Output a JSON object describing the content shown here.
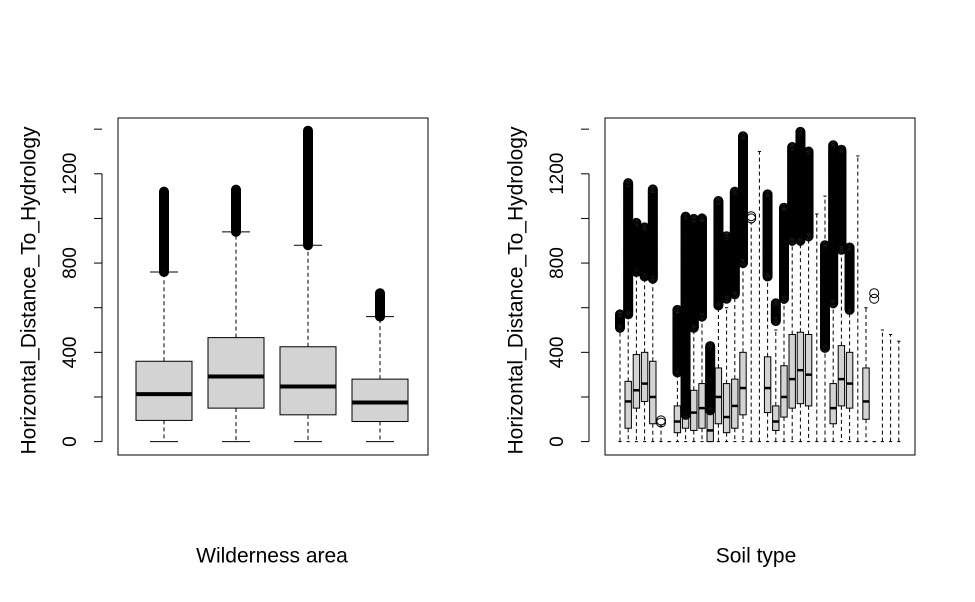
{
  "chart_data": [
    {
      "type": "box",
      "xlabel": "Wilderness area",
      "ylabel": "Horizontal_Distance_To_Hydrology",
      "ylim": [
        -60,
        1450
      ],
      "yticks": [
        0,
        400,
        800,
        1200
      ],
      "series": [
        {
          "q1": 95,
          "median": 213,
          "q3": 360,
          "whisker_low": 0,
          "whisker_high": 760,
          "outlier_range": [
            760,
            1120
          ]
        },
        {
          "q1": 150,
          "median": 292,
          "q3": 466,
          "whisker_low": 0,
          "whisker_high": 940,
          "outlier_range": [
            940,
            1130
          ]
        },
        {
          "q1": 120,
          "median": 247,
          "q3": 425,
          "whisker_low": 0,
          "whisker_high": 880,
          "outlier_range": [
            880,
            1395
          ]
        },
        {
          "q1": 90,
          "median": 175,
          "q3": 280,
          "whisker_low": 0,
          "whisker_high": 560,
          "outlier_range": [
            560,
            665
          ]
        }
      ]
    },
    {
      "type": "box",
      "xlabel": "Soil type",
      "ylabel": "Horizontal_Distance_To_Hydrology",
      "ylim": [
        -60,
        1450
      ],
      "yticks": [
        0,
        400,
        800,
        1200
      ],
      "series": [
        {
          "q1": 0,
          "median": 0,
          "q3": 0,
          "whisker_low": 0,
          "whisker_high": 500,
          "outlier_range": [
            510,
            570
          ]
        },
        {
          "q1": 60,
          "median": 180,
          "q3": 270,
          "whisker_low": 0,
          "whisker_high": 560,
          "outlier_range": [
            570,
            1160
          ]
        },
        {
          "q1": 150,
          "median": 230,
          "q3": 390,
          "whisker_low": 0,
          "whisker_high": 760,
          "outlier_range": [
            760,
            980
          ]
        },
        {
          "q1": 180,
          "median": 260,
          "q3": 400,
          "whisker_low": 0,
          "whisker_high": 740,
          "outlier_range": [
            740,
            960
          ]
        },
        {
          "q1": 80,
          "median": 200,
          "q3": 360,
          "whisker_low": 0,
          "whisker_high": 730,
          "outlier_range": [
            730,
            1130
          ]
        },
        {
          "q1": 0,
          "median": 0,
          "q3": 0,
          "whisker_low": 0,
          "whisker_high": 70,
          "outlier_range": [
            85,
            95
          ]
        },
        {
          "q1": 0,
          "median": 0,
          "q3": 0,
          "whisker_low": 0,
          "whisker_high": 0,
          "outlier_range": []
        },
        {
          "q1": 40,
          "median": 90,
          "q3": 160,
          "whisker_low": 0,
          "whisker_high": 300,
          "outlier_range": [
            310,
            590
          ]
        },
        {
          "q1": 60,
          "median": 120,
          "q3": 220,
          "whisker_low": 0,
          "whisker_high": 400,
          "outlier_range": [
            120,
            1010
          ]
        },
        {
          "q1": 50,
          "median": 130,
          "q3": 230,
          "whisker_low": 0,
          "whisker_high": 500,
          "outlier_range": [
            510,
            1000
          ]
        },
        {
          "q1": 60,
          "median": 150,
          "q3": 260,
          "whisker_low": 0,
          "whisker_high": 540,
          "outlier_range": [
            560,
            1000
          ]
        },
        {
          "q1": 0,
          "median": 50,
          "q3": 170,
          "whisker_low": 0,
          "whisker_high": 350,
          "outlier_range": [
            140,
            430
          ]
        },
        {
          "q1": 80,
          "median": 200,
          "q3": 330,
          "whisker_low": 0,
          "whisker_high": 600,
          "outlier_range": [
            610,
            1080
          ]
        },
        {
          "q1": 40,
          "median": 110,
          "q3": 260,
          "whisker_low": 0,
          "whisker_high": 600,
          "outlier_range": [
            640,
            920
          ]
        },
        {
          "q1": 60,
          "median": 160,
          "q3": 280,
          "whisker_low": 0,
          "whisker_high": 650,
          "outlier_range": [
            660,
            1120
          ]
        },
        {
          "q1": 120,
          "median": 240,
          "q3": 400,
          "whisker_low": 0,
          "whisker_high": 780,
          "outlier_range": [
            800,
            1370
          ]
        },
        {
          "q1": 0,
          "median": 0,
          "q3": 0,
          "whisker_low": 0,
          "whisker_high": 980,
          "outlier_range": [
            1000,
            1010
          ]
        },
        {
          "q1": 0,
          "median": 0,
          "q3": 0,
          "whisker_low": 0,
          "whisker_high": 1300,
          "outlier_range": []
        },
        {
          "q1": 130,
          "median": 240,
          "q3": 380,
          "whisker_low": 0,
          "whisker_high": 730,
          "outlier_range": [
            740,
            1110
          ]
        },
        {
          "q1": 50,
          "median": 90,
          "q3": 160,
          "whisker_low": 0,
          "whisker_high": 500,
          "outlier_range": [
            540,
            620
          ]
        },
        {
          "q1": 110,
          "median": 200,
          "q3": 340,
          "whisker_low": 0,
          "whisker_high": 620,
          "outlier_range": [
            640,
            1050
          ]
        },
        {
          "q1": 150,
          "median": 280,
          "q3": 480,
          "whisker_low": 0,
          "whisker_high": 880,
          "outlier_range": [
            900,
            1320
          ]
        },
        {
          "q1": 170,
          "median": 320,
          "q3": 490,
          "whisker_low": 0,
          "whisker_high": 880,
          "outlier_range": [
            900,
            1390
          ]
        },
        {
          "q1": 160,
          "median": 300,
          "q3": 480,
          "whisker_low": 0,
          "whisker_high": 900,
          "outlier_range": [
            920,
            1300
          ]
        },
        {
          "q1": 0,
          "median": 0,
          "q3": 0,
          "whisker_low": 0,
          "whisker_high": 1020,
          "outlier_range": []
        },
        {
          "q1": 0,
          "median": 0,
          "q3": 0,
          "whisker_low": 0,
          "whisker_high": 1100,
          "outlier_range": [
            420,
            880
          ]
        },
        {
          "q1": 80,
          "median": 150,
          "q3": 260,
          "whisker_low": 0,
          "whisker_high": 600,
          "outlier_range": [
            620,
            1330
          ]
        },
        {
          "q1": 160,
          "median": 280,
          "q3": 430,
          "whisker_low": 0,
          "whisker_high": 840,
          "outlier_range": [
            860,
            1310
          ]
        },
        {
          "q1": 150,
          "median": 260,
          "q3": 400,
          "whisker_low": 0,
          "whisker_high": 580,
          "outlier_range": [
            590,
            870
          ]
        },
        {
          "q1": 0,
          "median": 0,
          "q3": 0,
          "whisker_low": 0,
          "whisker_high": 1280,
          "outlier_range": []
        },
        {
          "q1": 100,
          "median": 180,
          "q3": 330,
          "whisker_low": 0,
          "whisker_high": 600,
          "outlier_range": []
        },
        {
          "q1": 0,
          "median": 0,
          "q3": 0,
          "whisker_low": 0,
          "whisker_high": 0,
          "outlier_range": [
            640,
            665
          ]
        },
        {
          "q1": 0,
          "median": 0,
          "q3": 0,
          "whisker_low": 0,
          "whisker_high": 500,
          "outlier_range": []
        },
        {
          "q1": 0,
          "median": 0,
          "q3": 0,
          "whisker_low": 0,
          "whisker_high": 480,
          "outlier_range": []
        },
        {
          "q1": 0,
          "median": 0,
          "q3": 0,
          "whisker_low": 0,
          "whisker_high": 450,
          "outlier_range": []
        }
      ]
    }
  ]
}
